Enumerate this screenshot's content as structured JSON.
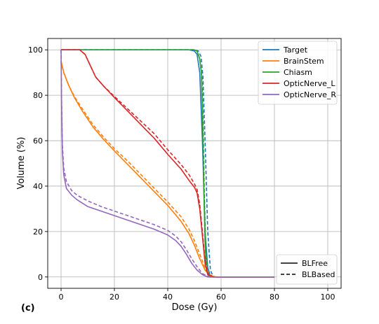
{
  "chart_data": {
    "type": "line",
    "panel_label": "(c)",
    "xlabel": "Dose (Gy)",
    "ylabel": "Volume (%)",
    "xlim": [
      -5,
      105
    ],
    "ylim": [
      -5,
      105
    ],
    "xticks": [
      0,
      20,
      40,
      60,
      80,
      100
    ],
    "yticks": [
      0,
      20,
      40,
      60,
      80,
      100
    ],
    "grid": true,
    "structure_legend_position": "top-right",
    "style_legend_position": "bottom-right",
    "structures": [
      {
        "name": "Target",
        "color": "#1f77b4",
        "free": [
          [
            0,
            100
          ],
          [
            48,
            100
          ],
          [
            50,
            99.5
          ],
          [
            51,
            98
          ],
          [
            52,
            90
          ],
          [
            53,
            60
          ],
          [
            54,
            20
          ],
          [
            55,
            4
          ],
          [
            56,
            0.5
          ],
          [
            58,
            0
          ],
          [
            80,
            0
          ]
        ],
        "based": [
          [
            0,
            100
          ],
          [
            50,
            100
          ],
          [
            51.5,
            99.5
          ],
          [
            52.5,
            97
          ],
          [
            53.2,
            88
          ],
          [
            54,
            60
          ],
          [
            55,
            20
          ],
          [
            56,
            3
          ],
          [
            57,
            0.3
          ],
          [
            58,
            0
          ],
          [
            80,
            0
          ]
        ]
      },
      {
        "name": "BrainStem",
        "color": "#ff7f0e",
        "free": [
          [
            0,
            95
          ],
          [
            1,
            90
          ],
          [
            3,
            84
          ],
          [
            5,
            79
          ],
          [
            8,
            73
          ],
          [
            12,
            66
          ],
          [
            16,
            60.5
          ],
          [
            20,
            55.5
          ],
          [
            25,
            49.5
          ],
          [
            30,
            43.5
          ],
          [
            35,
            37.5
          ],
          [
            40,
            31.5
          ],
          [
            45,
            24.5
          ],
          [
            48,
            19
          ],
          [
            50,
            14
          ],
          [
            52,
            8
          ],
          [
            54,
            3
          ],
          [
            56,
            0.5
          ],
          [
            58,
            0
          ],
          [
            80,
            0
          ]
        ],
        "based": [
          [
            0,
            95
          ],
          [
            1,
            90
          ],
          [
            3,
            84
          ],
          [
            5,
            79.5
          ],
          [
            8,
            74
          ],
          [
            12,
            67
          ],
          [
            16,
            61.5
          ],
          [
            20,
            56.5
          ],
          [
            25,
            51
          ],
          [
            30,
            45
          ],
          [
            35,
            39
          ],
          [
            40,
            33
          ],
          [
            45,
            26.5
          ],
          [
            48,
            21
          ],
          [
            50,
            16
          ],
          [
            52,
            10
          ],
          [
            54,
            4
          ],
          [
            56,
            0.8
          ],
          [
            58,
            0
          ],
          [
            80,
            0
          ]
        ]
      },
      {
        "name": "Chiasm",
        "color": "#2ca02c",
        "free": [
          [
            0,
            100
          ],
          [
            50,
            100
          ],
          [
            51,
            99.5
          ],
          [
            52,
            96
          ],
          [
            52.6,
            90
          ],
          [
            53,
            75
          ],
          [
            53.5,
            40
          ],
          [
            54,
            15
          ],
          [
            54.5,
            3
          ],
          [
            55.5,
            0
          ],
          [
            80,
            0
          ]
        ],
        "based": [
          [
            0,
            100
          ],
          [
            50,
            100
          ],
          [
            51,
            99.5
          ],
          [
            52,
            96
          ],
          [
            52.8,
            88
          ],
          [
            53.2,
            72
          ],
          [
            53.7,
            38
          ],
          [
            54.2,
            14
          ],
          [
            54.8,
            3
          ],
          [
            55.8,
            0
          ],
          [
            80,
            0
          ]
        ]
      },
      {
        "name": "OpticNerve_L",
        "color": "#d62728",
        "free": [
          [
            0,
            100
          ],
          [
            7,
            100
          ],
          [
            9,
            98
          ],
          [
            11,
            93
          ],
          [
            13,
            88
          ],
          [
            16,
            84
          ],
          [
            20,
            79
          ],
          [
            25,
            73
          ],
          [
            30,
            67
          ],
          [
            35,
            61
          ],
          [
            40,
            54
          ],
          [
            45,
            47.5
          ],
          [
            48,
            42.5
          ],
          [
            50,
            39.5
          ],
          [
            51,
            37
          ],
          [
            52,
            30
          ],
          [
            53,
            18
          ],
          [
            54,
            6
          ],
          [
            55,
            1
          ],
          [
            57,
            0
          ],
          [
            80,
            0
          ]
        ],
        "based": [
          [
            0,
            100
          ],
          [
            7,
            100
          ],
          [
            9,
            98
          ],
          [
            11,
            93
          ],
          [
            13,
            88
          ],
          [
            16,
            84
          ],
          [
            20,
            79.5
          ],
          [
            25,
            74
          ],
          [
            30,
            68.5
          ],
          [
            35,
            63
          ],
          [
            40,
            56
          ],
          [
            45,
            49.5
          ],
          [
            48,
            45
          ],
          [
            50,
            41
          ],
          [
            51,
            38.5
          ],
          [
            52,
            32
          ],
          [
            53,
            20
          ],
          [
            54,
            7
          ],
          [
            55,
            1.5
          ],
          [
            57,
            0
          ],
          [
            80,
            0
          ]
        ]
      },
      {
        "name": "OpticNerve_R",
        "color": "#9467bd",
        "free": [
          [
            0,
            100
          ],
          [
            0.2,
            75
          ],
          [
            0.5,
            55
          ],
          [
            1,
            45
          ],
          [
            2,
            39
          ],
          [
            4,
            36
          ],
          [
            6,
            34
          ],
          [
            10,
            31
          ],
          [
            15,
            29
          ],
          [
            20,
            27
          ],
          [
            25,
            25
          ],
          [
            30,
            23
          ],
          [
            35,
            21
          ],
          [
            40,
            18.5
          ],
          [
            43,
            16
          ],
          [
            45,
            13.5
          ],
          [
            47,
            10
          ],
          [
            49,
            6
          ],
          [
            51,
            3
          ],
          [
            53,
            1
          ],
          [
            55,
            0
          ],
          [
            80,
            0
          ]
        ],
        "based": [
          [
            0,
            100
          ],
          [
            0.2,
            78
          ],
          [
            0.5,
            58
          ],
          [
            1,
            48
          ],
          [
            2,
            42
          ],
          [
            4,
            38
          ],
          [
            6,
            36
          ],
          [
            10,
            33.5
          ],
          [
            15,
            31
          ],
          [
            20,
            29
          ],
          [
            25,
            27
          ],
          [
            30,
            25
          ],
          [
            35,
            23
          ],
          [
            40,
            20.5
          ],
          [
            43,
            18
          ],
          [
            45,
            15.5
          ],
          [
            47,
            12
          ],
          [
            49,
            8
          ],
          [
            51,
            4.5
          ],
          [
            53,
            1.5
          ],
          [
            55,
            0.2
          ],
          [
            57,
            0
          ],
          [
            80,
            0
          ]
        ]
      }
    ],
    "style_legend": [
      {
        "label": "BLFree",
        "dash": "solid"
      },
      {
        "label": "BLBased",
        "dash": "dashed"
      }
    ]
  }
}
